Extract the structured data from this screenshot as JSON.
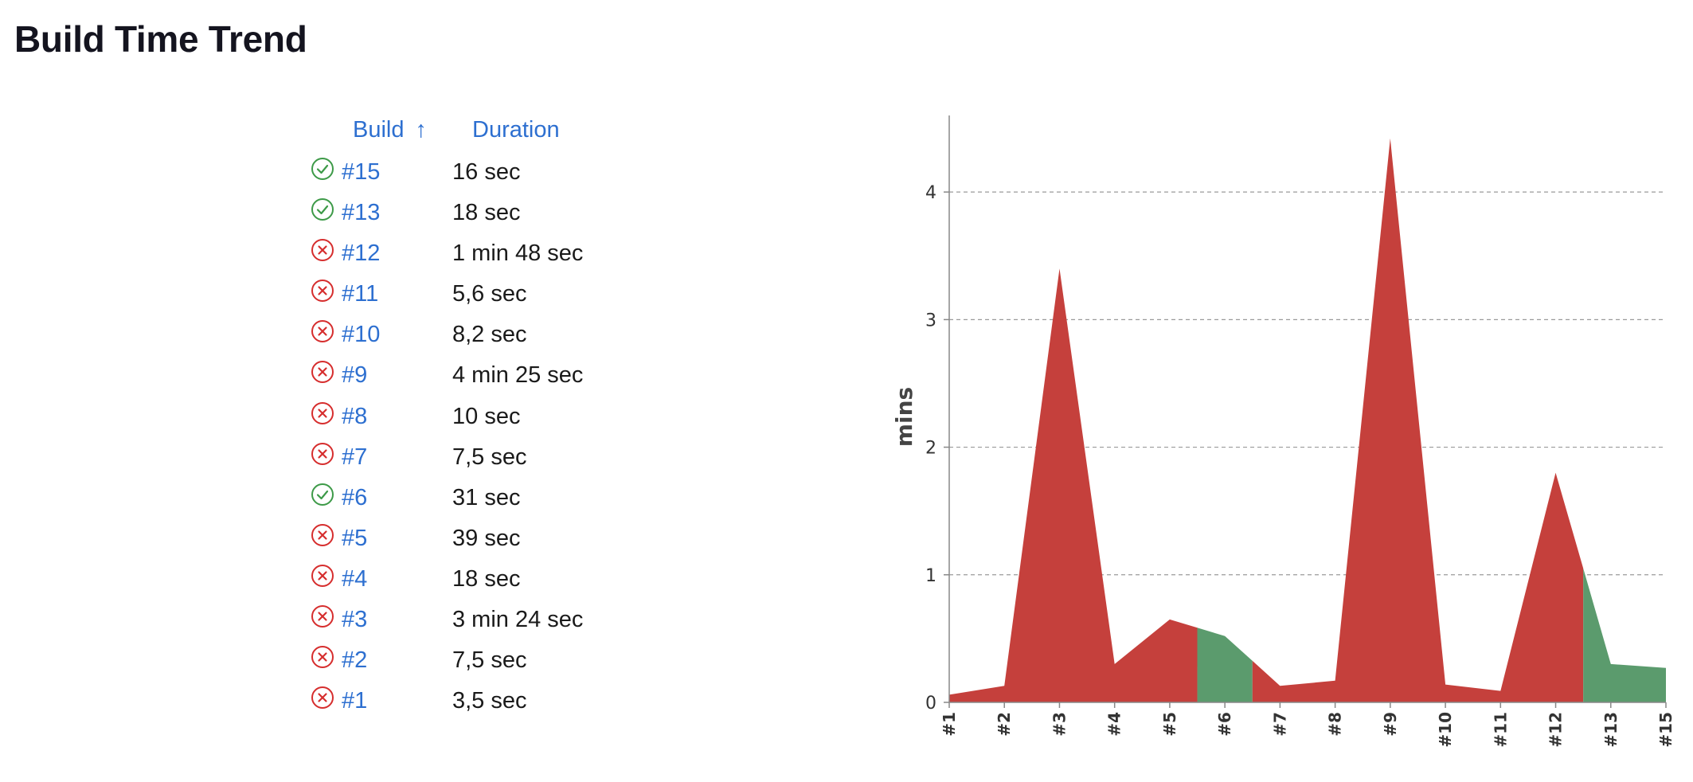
{
  "page": {
    "title": "Build Time Trend"
  },
  "table": {
    "columns": {
      "build": "Build",
      "duration": "Duration"
    },
    "sort_icon": "arrow-up-icon",
    "rows": [
      {
        "build": "#15",
        "duration": "16 sec",
        "status": "success"
      },
      {
        "build": "#13",
        "duration": "18 sec",
        "status": "success"
      },
      {
        "build": "#12",
        "duration": "1 min 48 sec",
        "status": "failure"
      },
      {
        "build": "#11",
        "duration": "5,6 sec",
        "status": "failure"
      },
      {
        "build": "#10",
        "duration": "8,2 sec",
        "status": "failure"
      },
      {
        "build": "#9",
        "duration": "4 min 25 sec",
        "status": "failure"
      },
      {
        "build": "#8",
        "duration": "10 sec",
        "status": "failure"
      },
      {
        "build": "#7",
        "duration": "7,5 sec",
        "status": "failure"
      },
      {
        "build": "#6",
        "duration": "31 sec",
        "status": "success"
      },
      {
        "build": "#5",
        "duration": "39 sec",
        "status": "failure"
      },
      {
        "build": "#4",
        "duration": "18 sec",
        "status": "failure"
      },
      {
        "build": "#3",
        "duration": "3 min 24 sec",
        "status": "failure"
      },
      {
        "build": "#2",
        "duration": "7,5 sec",
        "status": "failure"
      },
      {
        "build": "#1",
        "duration": "3,5 sec",
        "status": "failure"
      }
    ]
  },
  "colors": {
    "link": "#2d6fd0",
    "success": "#3d9a48",
    "failure": "#d62d2d",
    "chart_success": "#5b9b6d",
    "chart_failure": "#c5403c"
  },
  "chart_data": {
    "type": "area",
    "ylabel": "mins",
    "xlabel": "",
    "ylim": [
      0,
      4.6
    ],
    "yticks": [
      "0",
      "1",
      "2",
      "3",
      "4"
    ],
    "grid": true,
    "categories": [
      "#1",
      "#2",
      "#3",
      "#4",
      "#5",
      "#6",
      "#7",
      "#8",
      "#9",
      "#10",
      "#11",
      "#12",
      "#13",
      "#15"
    ],
    "values": [
      0.06,
      0.13,
      3.4,
      0.3,
      0.65,
      0.52,
      0.13,
      0.17,
      4.42,
      0.14,
      0.09,
      1.8,
      0.3,
      0.27
    ],
    "status": [
      "failure",
      "failure",
      "failure",
      "failure",
      "failure",
      "success",
      "failure",
      "failure",
      "failure",
      "failure",
      "failure",
      "failure",
      "success",
      "success"
    ]
  }
}
